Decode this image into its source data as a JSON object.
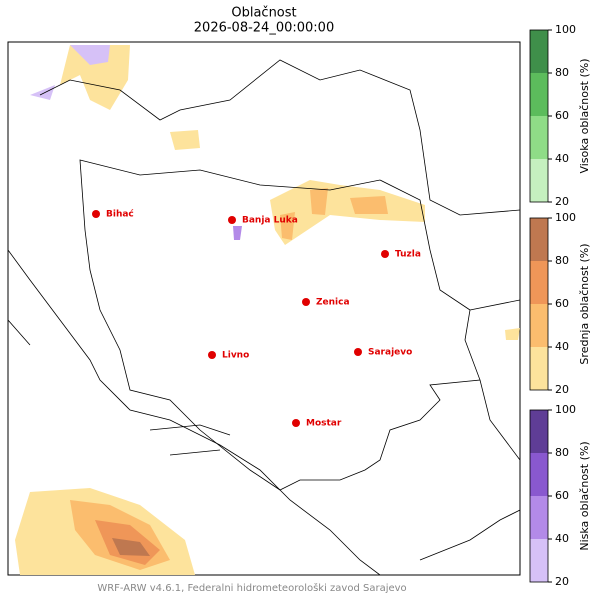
{
  "header": {
    "title": "Oblačnost",
    "subtitle": "2026-08-24_00:00:00"
  },
  "cities": [
    "Bihać",
    "Banja Luka",
    "Tuzla",
    "Zenica",
    "Livno",
    "Sarajevo",
    "Mostar"
  ],
  "colorbars": [
    {
      "label": "Visoka oblačnost (%)",
      "ticks": [
        20,
        40,
        60,
        80,
        100
      ],
      "colors": [
        "#c5f0bf",
        "#8fdc87",
        "#5cbc5c",
        "#3f8f4a"
      ]
    },
    {
      "label": "Srednja oblačnost (%)",
      "ticks": [
        20,
        40,
        60,
        80,
        100
      ],
      "colors": [
        "#fde39c",
        "#fbbd6e",
        "#ef9658",
        "#bf7850"
      ]
    },
    {
      "label": "Niska oblačnost (%)",
      "ticks": [
        20,
        40,
        60,
        80,
        100
      ],
      "colors": [
        "#d6c1f7",
        "#b38ae8",
        "#8958cf",
        "#5f3d96"
      ]
    }
  ],
  "footer": "WRF-ARW v4.6.1, Federalni hidrometeorološki zavod Sarajevo"
}
